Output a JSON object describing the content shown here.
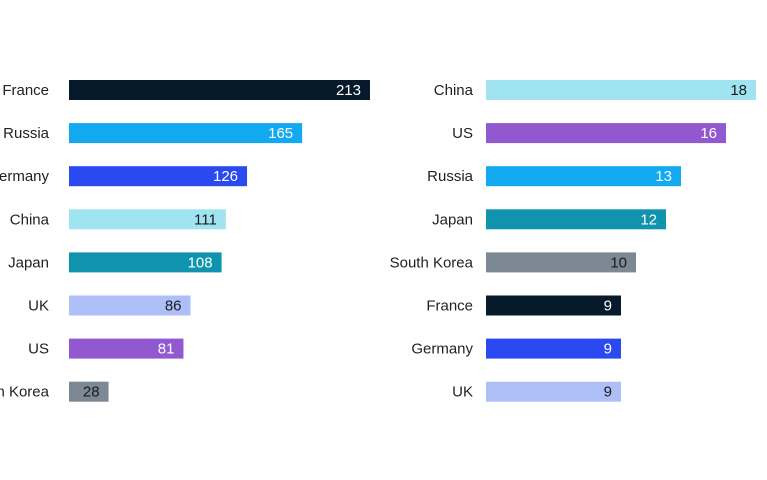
{
  "colors": {
    "France": "#061a2b",
    "Russia": "#12a9f0",
    "Germany": "#2b49f0",
    "China": "#9fe4f0",
    "Japan": "#1094ad",
    "UK": "#aebff8",
    "US": "#9258d0",
    "South Korea": "#7c8894"
  },
  "chart_data": [
    {
      "type": "bar",
      "orientation": "horizontal",
      "categories": [
        "France",
        "Russia",
        "Germany",
        "China",
        "Japan",
        "UK",
        "US",
        "South Korea"
      ],
      "values": [
        213,
        165,
        126,
        111,
        108,
        86,
        81,
        28
      ],
      "data_labels": [
        "213",
        "165",
        "126",
        "111",
        "108",
        "86",
        "81",
        "28"
      ]
    },
    {
      "type": "bar",
      "orientation": "horizontal",
      "categories": [
        "China",
        "US",
        "Russia",
        "Japan",
        "South Korea",
        "France",
        "Germany",
        "UK"
      ],
      "values": [
        18,
        16,
        13,
        12,
        10,
        9,
        9,
        9
      ],
      "data_labels": [
        "18",
        "16",
        "13",
        "12",
        "10",
        "9",
        "9",
        "9"
      ]
    }
  ]
}
